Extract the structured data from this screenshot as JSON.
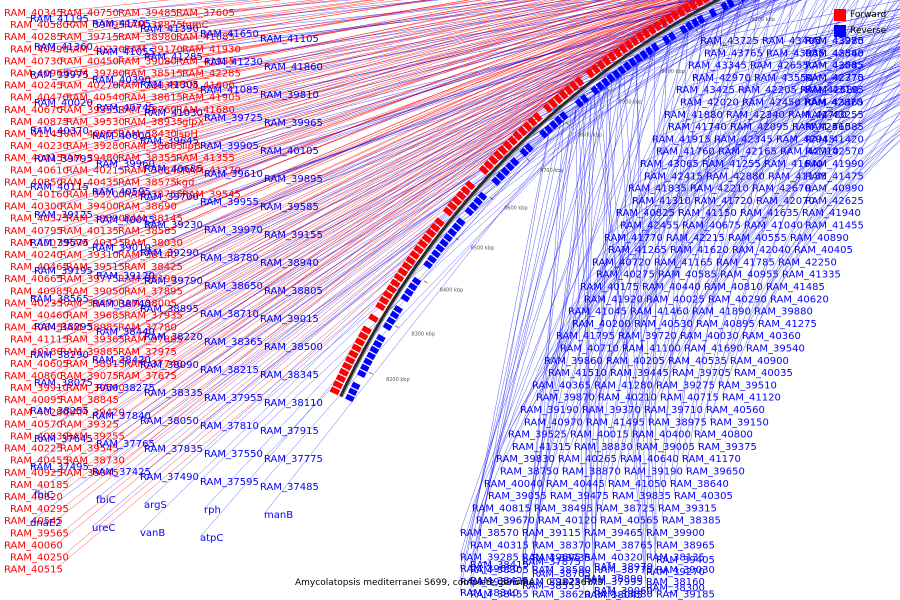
{
  "legend": {
    "forward_label": "Forward",
    "reverse_label": "Reverse",
    "forward_color": "#ff0000",
    "reverse_color": "#0000ff"
  },
  "caption": "Amycolatopsis mediterranei S699, complete genome. - 0..10236779",
  "kbp_ticks": [
    "8200 kbp",
    "8300 kbp",
    "8400 kbp",
    "8500 kbp",
    "8600 kbp",
    "8700 kbp",
    "8800 kbp",
    "8900 kbp",
    "9000 kbp",
    "9100 kbp",
    "9200 kbp",
    "9300 kbp",
    "9400 kbp",
    "9500 kbp",
    "9600 kbp",
    "9700 kbp",
    "9800 kbp",
    "9900 kbp",
    "10000 kbp",
    "10100 kbp",
    "10200 kbp"
  ],
  "forward_genes": [
    "RAM_40345",
    "RAM_40580",
    "RAM_40285",
    "RAM_40490",
    "RAM_40730",
    "RAM_40965",
    "RAM_40245",
    "RAM_40470",
    "RAM_40670",
    "RAM_40875",
    "RAM_41145",
    "RAM_40230",
    "RAM_40415",
    "RAM_40610",
    "RAM_40850",
    "RAM_40160",
    "RAM_40300",
    "RAM_40575",
    "RAM_40795",
    "RAM_40075",
    "RAM_40240",
    "RAM_40465",
    "RAM_40665",
    "RAM_40985",
    "RAM_40235",
    "RAM_40460",
    "RAM_40845",
    "RAM_41115",
    "RAM_40180",
    "RAM_40605",
    "RAM_40860",
    "RAM_39910",
    "RAM_40095",
    "RAM_40280",
    "RAM_40570",
    "RAM_40830",
    "RAM_40225",
    "RAM_40455",
    "RAM_40925",
    "RAM_40185",
    "RAM_40820",
    "RAM_40295",
    "RAM_40545",
    "RAM_39565",
    "RAM_40060",
    "RAM_40250",
    "RAM_40515",
    "RAM_40750",
    "RAM_39495",
    "RAM_39715",
    "RAM_40220",
    "RAM_40450",
    "RAM_39780",
    "RAM_40270",
    "RAM_40540",
    "RAM_39355",
    "RAM_39530",
    "RAM_40055",
    "RAM_39280",
    "RAM_39480",
    "RAM_40215",
    "RAM_40435",
    "RAM_39200",
    "RAM_39400",
    "RAM_39890",
    "RAM_40135",
    "RAM_40325",
    "RAM_39310",
    "RAM_39515",
    "RAM_39775",
    "RAM_39050",
    "RAM_39470",
    "RAM_39685",
    "RAM_38985",
    "RAM_39365",
    "RAM_39885",
    "RAM_38915",
    "RAM_39075",
    "RAM_39500",
    "RAM_38845",
    "RAM_39420",
    "RAM_39325",
    "RAM_39255",
    "RAM_39545",
    "RAM_38730",
    "RAM_39045",
    "RAM_39485",
    "RAM_38875",
    "RAM_38980",
    "RAM_39170",
    "RAM_39080",
    "RAM_38515",
    "RAM_38835",
    "RAM_38615",
    "RAM_38760",
    "RAM_38935",
    "RAM_38430",
    "RAM_38665",
    "RAM_38355",
    "RAM_38840",
    "RAM_38575",
    "RAM_38755",
    "RAM_38690",
    "RAM_38145",
    "RAM_38585",
    "RAM_38030",
    "RAM_38140",
    "RAM_38425",
    "RAM_38190",
    "RAM_37895",
    "RAM_38005",
    "RAM_37935",
    "RAM_37780",
    "RAM_37885",
    "RAM_37975",
    "RAM_37740",
    "RAM_37675",
    "RAM_37605",
    "fumC",
    "RAM_41685",
    "RAM_41930",
    "RAM_41935",
    "RAM_42285",
    "RAM_41600",
    "RAM_41905",
    "RAM_41680",
    "glpX",
    "ispH",
    "lipB",
    "RAM_41355",
    "RAM_41270",
    "kgd",
    "RAM_39545"
  ],
  "reverse_genes": [
    "RAM_41195",
    "RAM_41705",
    "RAM_41390",
    "RAM_41650",
    "RAM_41105",
    "RAM_41360",
    "RAM_41055",
    "RAM_41285",
    "RAM_41230",
    "RAM_41860",
    "RAM_39975",
    "RAM_40390",
    "RAM_41305",
    "RAM_41085",
    "RAM_39810",
    "RAM_40020",
    "RAM_40745",
    "RAM_41030",
    "RAM_39725",
    "RAM_39965",
    "RAM_40370",
    "RAM_40600",
    "RAM_39645",
    "RAM_39905",
    "RAM_40105",
    "RAM_39795",
    "RAM_39960",
    "RAM_40685",
    "RAM_39610",
    "RAM_39895",
    "RAM_40115",
    "RAM_40595",
    "RAM_39700",
    "RAM_39955",
    "RAM_39585",
    "RAM_39125",
    "RAM_40045",
    "RAM_39230",
    "RAM_39970",
    "RAM_39155",
    "RAM_39575",
    "RAM_39010",
    "RAM_39290",
    "RAM_38780",
    "RAM_38940",
    "RAM_39195",
    "RAM_39120",
    "RAM_39790",
    "RAM_38650",
    "RAM_38805",
    "RAM_38565",
    "RAM_38740",
    "RAM_38895",
    "RAM_38710",
    "RAM_39015",
    "RAM_38295",
    "RAM_38440",
    "RAM_38220",
    "RAM_38365",
    "RAM_38500",
    "RAM_38290",
    "RAM_38420",
    "RAM_38090",
    "RAM_38215",
    "RAM_38345",
    "RAM_38075",
    "RAM_38275",
    "RAM_38335",
    "RAM_37955",
    "RAM_38110",
    "RAM_38255",
    "RAM_37840",
    "RAM_38050",
    "RAM_37810",
    "RAM_37915",
    "RAM_37645",
    "RAM_37765",
    "RAM_37835",
    "RAM_37550",
    "RAM_37775",
    "RAM_37495",
    "RAM_37425",
    "RAM_37490",
    "RAM_37595",
    "RAM_37485",
    "fbiC",
    "fbiC",
    "argS",
    "rph",
    "manB",
    "dnaE2",
    "ureC",
    "vanB",
    "atpC",
    "RAM_43725",
    "RAM_43495",
    "RAM_43985",
    "RAM_43270",
    "RAM_43765",
    "RAM_43035",
    "RAM_43540",
    "RAM_42865",
    "RAM_43345",
    "RAM_42655",
    "RAM_43085",
    "RAM_42545",
    "RAM_42970",
    "RAM_43550",
    "RAM_42370",
    "RAM_42775",
    "RAM_43425",
    "RAM_42205",
    "RAM_42680",
    "RAM_43195",
    "RAM_42020",
    "RAM_42450",
    "RAM_42870",
    "RAM_43365",
    "RAM_41880",
    "RAM_42340",
    "RAM_42780",
    "RAM_43255",
    "RAM_41740",
    "RAM_42095",
    "RAM_42560",
    "RAM_41585",
    "RAM_41915",
    "RAM_42345",
    "RAM_42945",
    "RAM_41420",
    "RAM_41760",
    "RAM_42165",
    "RAM_42710",
    "RAM_42570",
    "RAM_43065",
    "RAM_41255",
    "RAM_41640",
    "RAM_41990",
    "RAM_42415",
    "RAM_42880",
    "RAM_41135",
    "RAM_41475",
    "RAM_41835",
    "RAM_42210",
    "RAM_42670",
    "RAM_40990",
    "RAM_41310",
    "RAM_41720",
    "RAM_42070",
    "RAM_42625",
    "RAM_40825",
    "RAM_41150",
    "RAM_41635",
    "RAM_41940",
    "RAM_42455",
    "RAM_40675",
    "RAM_41040",
    "RAM_41455",
    "RAM_41770",
    "RAM_42215",
    "RAM_40555",
    "RAM_40890",
    "RAM_41265",
    "RAM_41620",
    "RAM_42040",
    "RAM_40405",
    "RAM_40720",
    "RAM_41165",
    "RAM_41785",
    "RAM_42250",
    "RAM_40275",
    "RAM_40585",
    "RAM_40955",
    "RAM_41335",
    "RAM_40175",
    "RAM_40440",
    "RAM_40810",
    "RAM_41485",
    "RAM_41920",
    "RAM_40025",
    "RAM_40290",
    "RAM_40620",
    "RAM_41045",
    "RAM_41460",
    "RAM_41890",
    "RAM_39880",
    "RAM_40200",
    "RAM_40530",
    "RAM_40895",
    "RAM_41275",
    "RAM_41795",
    "RAM_39720",
    "RAM_40030",
    "RAM_40360",
    "RAM_40710",
    "RAM_41100",
    "RAM_41690",
    "RAM_39540",
    "RAM_39860",
    "RAM_40205",
    "RAM_40535",
    "RAM_40900",
    "RAM_41510",
    "RAM_39445",
    "RAM_39705",
    "RAM_40035",
    "RAM_40365",
    "RAM_41280",
    "RAM_39275",
    "RAM_39510",
    "RAM_39870",
    "RAM_40210",
    "RAM_40715",
    "RAM_41120",
    "RAM_39190",
    "RAM_39370",
    "RAM_39710",
    "RAM_40560",
    "RAM_40970",
    "RAM_41495",
    "RAM_38975",
    "RAM_39150",
    "RAM_39525",
    "RAM_40015",
    "RAM_40400",
    "RAM_40800",
    "RAM_41315",
    "RAM_38830",
    "RAM_39005",
    "RAM_39375",
    "RAM_39830",
    "RAM_40265",
    "RAM_40640",
    "RAM_41170",
    "RAM_38750",
    "RAM_38870",
    "RAM_39190",
    "RAM_39650",
    "RAM_40040",
    "RAM_40445",
    "RAM_41050",
    "RAM_38640",
    "RAM_39055",
    "RAM_39475",
    "RAM_39835",
    "RAM_40305",
    "RAM_40815",
    "RAM_38495",
    "RAM_38725",
    "RAM_39315",
    "RAM_39670",
    "RAM_40120",
    "RAM_40565",
    "RAM_38385",
    "RAM_38570",
    "RAM_39115",
    "RAM_39465",
    "RAM_39900",
    "RAM_40315",
    "RAM_38370",
    "RAM_38765",
    "RAM_38965",
    "RAM_39285",
    "RAM_39695",
    "RAM_40320",
    "RAM_38135",
    "RAM_38305",
    "RAM_38580",
    "RAM_38775",
    "RAM_39030",
    "RAM_39395",
    "RAM_39875",
    "RAM_37995",
    "RAM_38160",
    "RAM_38455",
    "RAM_38620",
    "RAM_38880",
    "RAM_39185",
    "RAM_39630",
    "RAM_37875",
    "RAM_38045",
    "RAM_38300",
    "RAM_38435",
    "RAM_38705",
    "RAM_38970",
    "RAM_39405",
    "RAM_38340",
    "RAM_38555",
    "RAM_38890",
    "RAM_39270",
    "RAM_38415",
    "RAM_38735",
    "RAM_39060"
  ]
}
